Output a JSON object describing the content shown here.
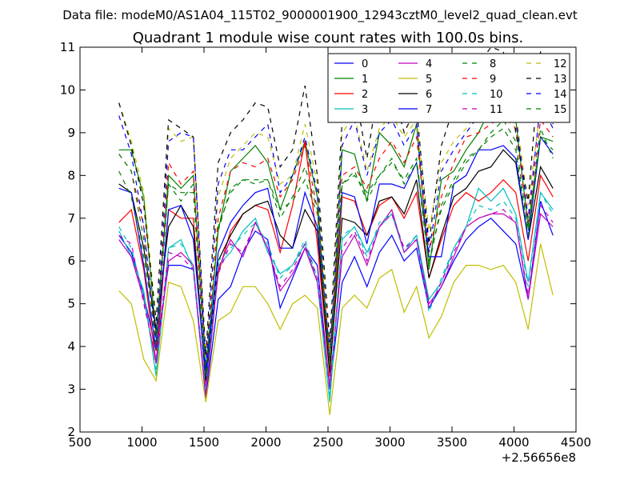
{
  "suptitle": "Data file: modeM0/AS1A04_115T02_9000001900_12943cztM0_level2_quad_clean.evt",
  "chart_data": {
    "type": "line",
    "title": "Quadrant 1 module wise count rates with 100.0s bins.",
    "x_offset_label": "+2.56656e8",
    "xlim": [
      500,
      4500
    ],
    "ylim": [
      2,
      11
    ],
    "xticks": [
      "500",
      "1000",
      "1500",
      "2000",
      "2500",
      "3000",
      "3500",
      "4000",
      "4500"
    ],
    "yticks": [
      "2",
      "3",
      "4",
      "5",
      "6",
      "7",
      "8",
      "9",
      "10",
      "11"
    ],
    "legend": {
      "position": "top-right",
      "columns": 4
    },
    "x": [
      814,
      914,
      1014,
      1114,
      1214,
      1314,
      1414,
      1514,
      1614,
      1714,
      1814,
      1914,
      2014,
      2114,
      2214,
      2314,
      2414,
      2514,
      2614,
      2714,
      2814,
      2914,
      3014,
      3114,
      3214,
      3314,
      3414,
      3514,
      3614,
      3714,
      3814,
      3914,
      4014,
      4114,
      4214,
      4314
    ],
    "series": [
      {
        "name": "0",
        "color": "#0000ff",
        "dash": "solid",
        "values": [
          6.6,
          6.2,
          5.2,
          3.9,
          5.9,
          5.9,
          5.8,
          2.8,
          5.1,
          5.4,
          6.2,
          6.7,
          6.5,
          4.9,
          5.6,
          6.3,
          5.9,
          3.0,
          5.5,
          6.1,
          5.4,
          6.2,
          6.6,
          6.0,
          6.3,
          4.9,
          5.4,
          6.0,
          6.5,
          6.8,
          7.0,
          6.7,
          6.4,
          5.1,
          7.4,
          6.6
        ]
      },
      {
        "name": "1",
        "color": "#008000",
        "dash": "solid",
        "values": [
          8.6,
          8.6,
          7.5,
          4.2,
          8.0,
          7.7,
          8.0,
          3.4,
          6.7,
          8.1,
          8.4,
          8.7,
          8.3,
          7.2,
          8.0,
          8.8,
          7.5,
          3.4,
          8.6,
          8.5,
          7.4,
          9.0,
          8.7,
          8.2,
          9.2,
          5.8,
          7.9,
          8.1,
          8.6,
          9.0,
          9.6,
          9.6,
          9.3,
          6.8,
          8.9,
          8.8
        ]
      },
      {
        "name": "2",
        "color": "#ff0000",
        "dash": "solid",
        "values": [
          6.9,
          7.2,
          5.8,
          3.6,
          7.2,
          7.0,
          7.0,
          3.1,
          5.7,
          6.7,
          7.1,
          7.3,
          7.2,
          6.2,
          7.3,
          8.8,
          6.4,
          3.3,
          7.5,
          7.4,
          6.6,
          7.3,
          7.5,
          7.0,
          7.6,
          5.6,
          6.5,
          7.3,
          7.6,
          7.4,
          7.6,
          7.9,
          7.6,
          6.0,
          8.0,
          7.5
        ]
      },
      {
        "name": "3",
        "color": "#00bfbf",
        "dash": "solid",
        "values": [
          6.7,
          6.1,
          5.3,
          3.3,
          6.3,
          6.5,
          5.8,
          2.9,
          5.9,
          6.2,
          6.7,
          7.0,
          6.2,
          5.7,
          5.9,
          6.4,
          5.5,
          2.7,
          6.5,
          6.8,
          6.2,
          6.8,
          7.1,
          6.2,
          6.6,
          5.1,
          5.5,
          6.3,
          6.8,
          7.7,
          7.4,
          7.7,
          7.1,
          5.5,
          7.6,
          7.2
        ]
      },
      {
        "name": "4",
        "color": "#bf00bf",
        "dash": "solid",
        "values": [
          6.5,
          6.1,
          5.1,
          3.6,
          6.0,
          6.2,
          5.9,
          2.8,
          5.8,
          6.5,
          6.1,
          6.9,
          6.3,
          5.3,
          5.7,
          6.3,
          5.5,
          3.1,
          6.1,
          6.6,
          5.9,
          6.8,
          7.2,
          6.2,
          6.5,
          5.0,
          5.4,
          6.1,
          6.8,
          7.0,
          7.1,
          7.1,
          6.9,
          5.1,
          7.1,
          6.8
        ]
      },
      {
        "name": "5",
        "color": "#bfbf00",
        "dash": "solid",
        "values": [
          5.3,
          5.0,
          3.7,
          3.2,
          5.5,
          5.4,
          4.6,
          2.7,
          4.6,
          4.8,
          5.4,
          5.4,
          5.0,
          4.4,
          5.0,
          5.2,
          4.9,
          2.4,
          4.9,
          5.2,
          4.9,
          5.6,
          5.8,
          4.8,
          5.4,
          4.2,
          4.7,
          5.5,
          5.9,
          5.9,
          5.8,
          5.9,
          5.5,
          4.4,
          6.4,
          5.2
        ]
      },
      {
        "name": "6",
        "color": "#000000",
        "dash": "solid",
        "values": [
          7.8,
          7.6,
          6.3,
          4.4,
          6.8,
          7.3,
          6.8,
          3.2,
          6.0,
          6.6,
          7.1,
          7.3,
          7.4,
          6.6,
          6.3,
          7.2,
          6.7,
          3.4,
          7.0,
          6.9,
          6.6,
          7.4,
          7.5,
          7.1,
          7.9,
          5.6,
          6.6,
          7.5,
          7.7,
          8.1,
          8.2,
          8.6,
          8.3,
          6.5,
          8.2,
          7.7
        ]
      },
      {
        "name": "7",
        "color": "#0000ff",
        "dash": "solid",
        "values": [
          7.7,
          7.6,
          5.9,
          3.9,
          7.2,
          7.3,
          6.5,
          3.3,
          6.2,
          6.9,
          7.3,
          7.6,
          7.7,
          6.3,
          6.3,
          7.6,
          6.8,
          3.9,
          7.6,
          7.5,
          6.4,
          7.8,
          7.8,
          7.7,
          8.3,
          6.1,
          6.1,
          7.8,
          8.0,
          8.6,
          8.6,
          8.7,
          8.4,
          6.5,
          8.9,
          8.5
        ]
      },
      {
        "name": "8",
        "color": "#008000",
        "dash": "dashed",
        "values": [
          8.1,
          7.5,
          6.1,
          4.3,
          7.8,
          7.4,
          7.8,
          3.5,
          6.7,
          7.7,
          7.9,
          7.8,
          7.9,
          7.2,
          7.4,
          7.9,
          7.1,
          3.6,
          7.8,
          8.0,
          7.6,
          8.0,
          8.3,
          7.9,
          8.4,
          6.0,
          7.2,
          7.8,
          8.3,
          8.6,
          9.0,
          9.3,
          8.8,
          6.7,
          9.1,
          8.4
        ]
      },
      {
        "name": "9",
        "color": "#ff0000",
        "dash": "dashed",
        "values": [
          8.5,
          8.1,
          6.8,
          4.0,
          8.3,
          7.8,
          8.1,
          3.5,
          7.0,
          8.1,
          8.3,
          8.2,
          8.4,
          7.5,
          7.9,
          8.7,
          7.2,
          3.7,
          8.0,
          8.2,
          7.7,
          8.4,
          8.8,
          8.3,
          8.9,
          6.2,
          7.5,
          8.3,
          8.9,
          9.0,
          9.2,
          9.4,
          9.1,
          6.9,
          9.3,
          8.9
        ]
      },
      {
        "name": "10",
        "color": "#00bfbf",
        "dash": "dashed",
        "values": [
          6.8,
          6.3,
          5.2,
          3.4,
          6.3,
          6.4,
          5.9,
          3.0,
          6.0,
          6.3,
          6.6,
          6.9,
          6.4,
          5.6,
          5.9,
          6.5,
          5.6,
          2.8,
          6.6,
          6.8,
          6.1,
          6.9,
          7.1,
          6.3,
          6.6,
          4.8,
          5.6,
          6.3,
          6.8,
          7.3,
          7.2,
          7.4,
          7.0,
          5.4,
          7.6,
          7.1
        ]
      },
      {
        "name": "11",
        "color": "#bf00bf",
        "dash": "dashed",
        "values": [
          6.6,
          6.4,
          5.0,
          3.7,
          6.2,
          6.1,
          5.8,
          2.9,
          5.7,
          6.4,
          6.2,
          6.9,
          6.3,
          5.4,
          5.8,
          6.4,
          5.6,
          3.0,
          6.3,
          6.7,
          6.0,
          6.8,
          7.1,
          6.3,
          6.5,
          4.9,
          5.5,
          6.2,
          6.8,
          7.0,
          7.1,
          7.2,
          6.9,
          5.2,
          7.3,
          6.9
        ]
      },
      {
        "name": "12",
        "color": "#bfbf00",
        "dash": "dashed",
        "values": [
          9.7,
          8.8,
          7.6,
          4.6,
          9.1,
          8.8,
          8.9,
          3.8,
          7.5,
          8.4,
          8.7,
          9.0,
          8.9,
          7.8,
          8.0,
          9.2,
          7.8,
          3.9,
          9.0,
          9.4,
          8.1,
          9.1,
          9.4,
          8.9,
          9.3,
          6.7,
          8.3,
          8.8,
          9.1,
          9.5,
          9.7,
          9.8,
          9.5,
          7.3,
          9.6,
          9.1
        ]
      },
      {
        "name": "13",
        "color": "#000000",
        "dash": "dashed",
        "values": [
          9.7,
          8.7,
          7.3,
          4.6,
          9.3,
          9.1,
          8.9,
          3.8,
          8.3,
          9.0,
          9.3,
          9.7,
          9.6,
          8.2,
          8.6,
          10.1,
          8.0,
          4.1,
          9.3,
          10.0,
          8.4,
          10.2,
          10.1,
          9.0,
          9.6,
          6.4,
          8.7,
          9.6,
          10.1,
          10.6,
          11.0,
          10.9,
          9.0,
          7.4,
          10.9,
          9.2
        ]
      },
      {
        "name": "14",
        "color": "#0000ff",
        "dash": "dashed",
        "values": [
          9.4,
          8.5,
          6.8,
          4.1,
          8.8,
          9.0,
          8.9,
          3.5,
          7.8,
          8.6,
          8.6,
          8.9,
          9.2,
          7.6,
          8.0,
          8.9,
          7.6,
          3.6,
          8.7,
          9.3,
          8.0,
          9.0,
          9.3,
          8.7,
          9.2,
          6.2,
          8.1,
          8.6,
          9.0,
          9.4,
          9.8,
          9.8,
          9.4,
          7.0,
          9.7,
          9.1
        ]
      },
      {
        "name": "15",
        "color": "#008000",
        "dash": "dashed",
        "values": [
          8.5,
          8.1,
          6.5,
          3.9,
          7.8,
          7.6,
          7.6,
          3.3,
          6.8,
          7.6,
          7.9,
          7.9,
          7.9,
          7.0,
          7.5,
          8.2,
          7.2,
          3.5,
          7.8,
          8.1,
          7.4,
          8.0,
          8.4,
          7.8,
          8.3,
          5.9,
          7.3,
          7.9,
          8.4,
          8.6,
          8.9,
          9.1,
          8.6,
          6.6,
          8.9,
          8.6
        ]
      }
    ]
  }
}
